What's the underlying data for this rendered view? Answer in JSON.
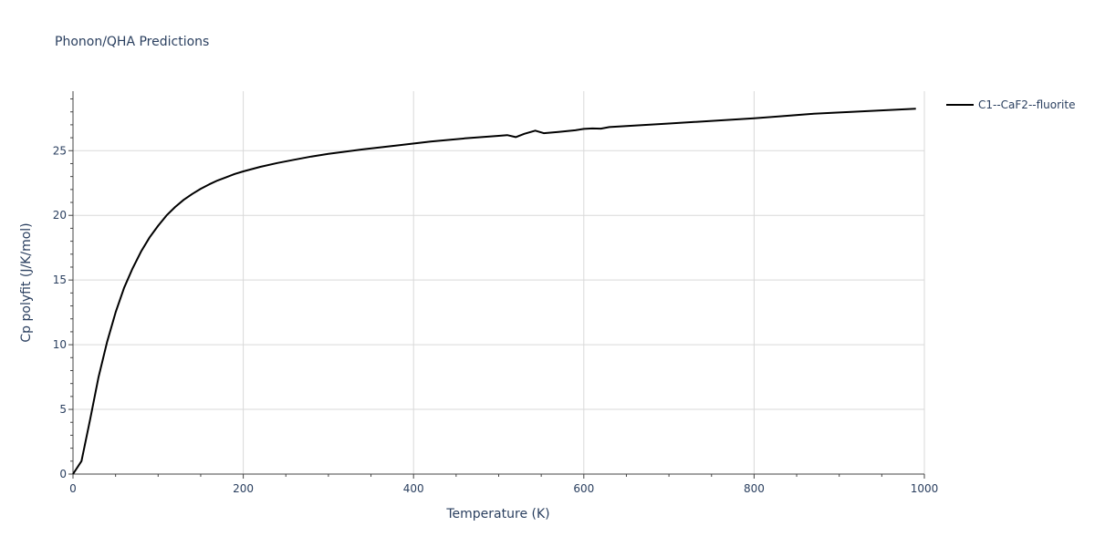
{
  "chart_data": {
    "type": "line",
    "title": "Phonon/QHA Predictions",
    "xlabel": "Temperature (K)",
    "ylabel": "Cp polyfit (J/K/mol)",
    "xlim": [
      0,
      1000
    ],
    "ylim": [
      0,
      29.6
    ],
    "x_ticks": [
      0,
      200,
      400,
      600,
      800,
      1000
    ],
    "y_ticks": [
      0,
      5,
      10,
      15,
      20,
      25
    ],
    "grid": true,
    "legend_position": "top-right",
    "colors": {
      "series": "#000000"
    },
    "series": [
      {
        "name": "C1--CaF2--fluorite",
        "x": [
          0,
          10,
          20,
          30,
          40,
          50,
          60,
          70,
          80,
          90,
          100,
          110,
          120,
          130,
          140,
          150,
          160,
          170,
          180,
          190,
          200,
          220,
          240,
          260,
          280,
          300,
          340,
          380,
          420,
          460,
          500,
          510,
          520,
          530,
          543,
          553,
          570,
          590,
          600,
          610,
          620,
          630,
          700,
          800,
          870,
          990
        ],
        "y": [
          0,
          1.0,
          4.2,
          7.5,
          10.2,
          12.5,
          14.4,
          15.9,
          17.2,
          18.3,
          19.2,
          20.0,
          20.65,
          21.2,
          21.65,
          22.05,
          22.4,
          22.7,
          22.95,
          23.2,
          23.4,
          23.75,
          24.05,
          24.3,
          24.55,
          24.75,
          25.1,
          25.4,
          25.7,
          25.95,
          26.15,
          26.2,
          26.05,
          26.3,
          26.55,
          26.35,
          26.45,
          26.58,
          26.68,
          26.72,
          26.7,
          26.82,
          27.1,
          27.5,
          27.85,
          28.25
        ]
      }
    ]
  }
}
